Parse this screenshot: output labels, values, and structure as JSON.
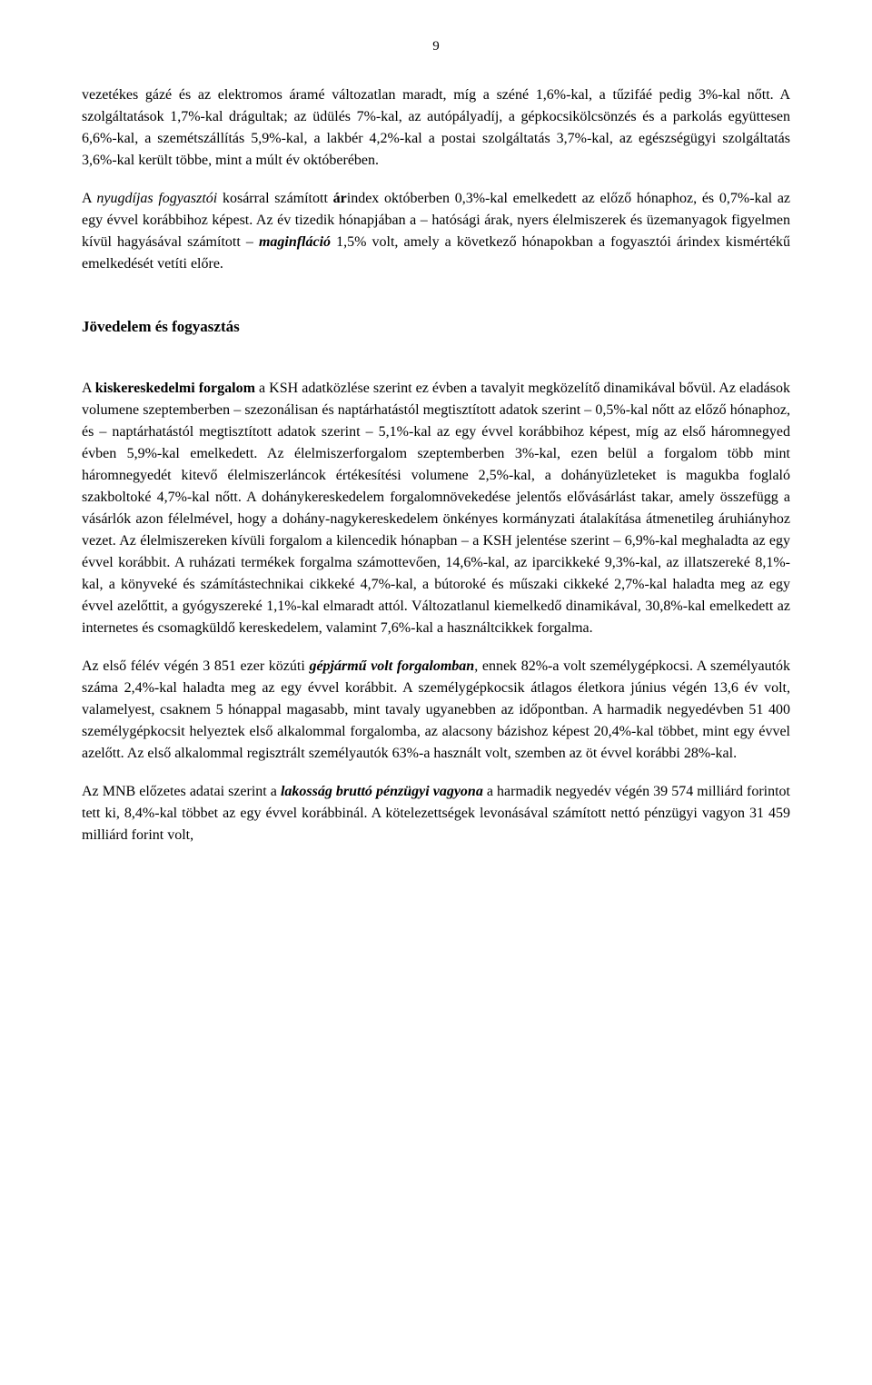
{
  "page_number": "9",
  "para1_a": "vezetékes gázé és az elektromos áramé változatlan maradt, míg a széné 1,6%-kal, a tűzifáé pedig 3%-kal nőtt. A szolgáltatások 1,7%-kal drágultak; az üdülés 7%-kal, az autópályadíj, a gépkocsikölcsönzés és a parkolás együttesen 6,6%-kal, a szemétszállítás 5,9%-kal, a lakbér 4,2%-kal a postai szolgáltatás 3,7%-kal, az egészségügyi szolgáltatás 3,6%-kal került többe, mint a múlt év októberében.",
  "para2_a": "A ",
  "para2_b": "nyugdíjas fogyasztói",
  "para2_c": " kosárral számított ",
  "para2_d": "ár",
  "para2_e": "index októberben 0,3%-kal emelkedett az előző hónaphoz, és 0,7%-kal az egy évvel korábbihoz képest. Az év tizedik hónapjában a – hatósági árak, nyers élelmiszerek és üzemanyagok figyelmen kívül hagyásával számított – ",
  "para2_f": "maginfláció",
  "para2_g": " 1,5% volt, amely a következő hónapokban a fogyasztói árindex kismértékű emelkedését vetíti előre.",
  "heading": "Jövedelem és fogyasztás",
  "para3_a": "A ",
  "para3_b": "kiskereskedelmi forgalom",
  "para3_c": " a KSH adatközlése szerint ez évben a tavalyit megközelítő dinamikával bővül. Az eladások volumene szeptemberben – szezonálisan és naptárhatástól megtisztított adatok szerint – 0,5%-kal nőtt az előző hónaphoz, és – naptárhatástól megtisztított adatok szerint – 5,1%-kal az egy évvel korábbihoz képest, míg az első háromnegyed évben 5,9%-kal emelkedett. Az élelmiszerforgalom szeptemberben 3%-kal, ezen belül a forgalom több mint háromnegyedét kitevő élelmiszerláncok értékesítési volumene 2,5%-kal, a dohányüzleteket is magukba foglaló szakboltoké 4,7%-kal nőtt. A dohánykereskedelem forgalomnövekedése jelentős elővásárlást takar, amely összefügg a vásárlók azon félelmével, hogy a dohány-nagykereskedelem önkényes kormányzati átalakítása átmenetileg áruhiányhoz vezet. Az élelmiszereken kívüli forgalom a kilencedik hónapban – a KSH jelentése szerint – 6,9%-kal meghaladta az egy évvel korábbit. A ruházati termékek forgalma számottevően, 14,6%-kal, az iparcikkeké 9,3%-kal, az illatszereké 8,1%-kal, a könyveké és számítástechnikai cikkeké 4,7%-kal, a bútoroké és műszaki cikkeké 2,7%-kal haladta meg az egy évvel azelőttit, a gyógyszereké 1,1%-kal elmaradt attól. Változatlanul kiemelkedő dinamikával, 30,8%-kal emelkedett az internetes és csomagküldő kereskedelem, valamint 7,6%-kal a használtcikkek forgalma.",
  "para4_a": "Az első félév végén 3 851 ezer közúti ",
  "para4_b": "gépjármű volt forgalomban",
  "para4_c": ", ennek 82%-a volt személygépkocsi. A személyautók száma 2,4%-kal haladta meg az egy évvel korábbit. A személygépkocsik átlagos életkora június végén 13,6 év volt, valamelyest, csaknem 5 hónappal magasabb, mint tavaly ugyanebben az időpontban. A harmadik negyedévben 51 400 személygépkocsit helyeztek első alkalommal forgalomba, az alacsony bázishoz képest 20,4%-kal többet, mint egy évvel azelőtt. Az első alkalommal regisztrált személyautók 63%-a használt volt, szemben az öt évvel korábbi 28%-kal.",
  "para5_a": "Az MNB előzetes adatai szerint a ",
  "para5_b": "lakosság bruttó pénzügyi vagyona",
  "para5_c": " a harmadik negyedév végén 39 574 milliárd forintot tett ki, 8,4%-kal többet az egy évvel korábbinál. A kötelezettségek levonásával számított nettó pénzügyi vagyon 31 459 milliárd forint volt,"
}
